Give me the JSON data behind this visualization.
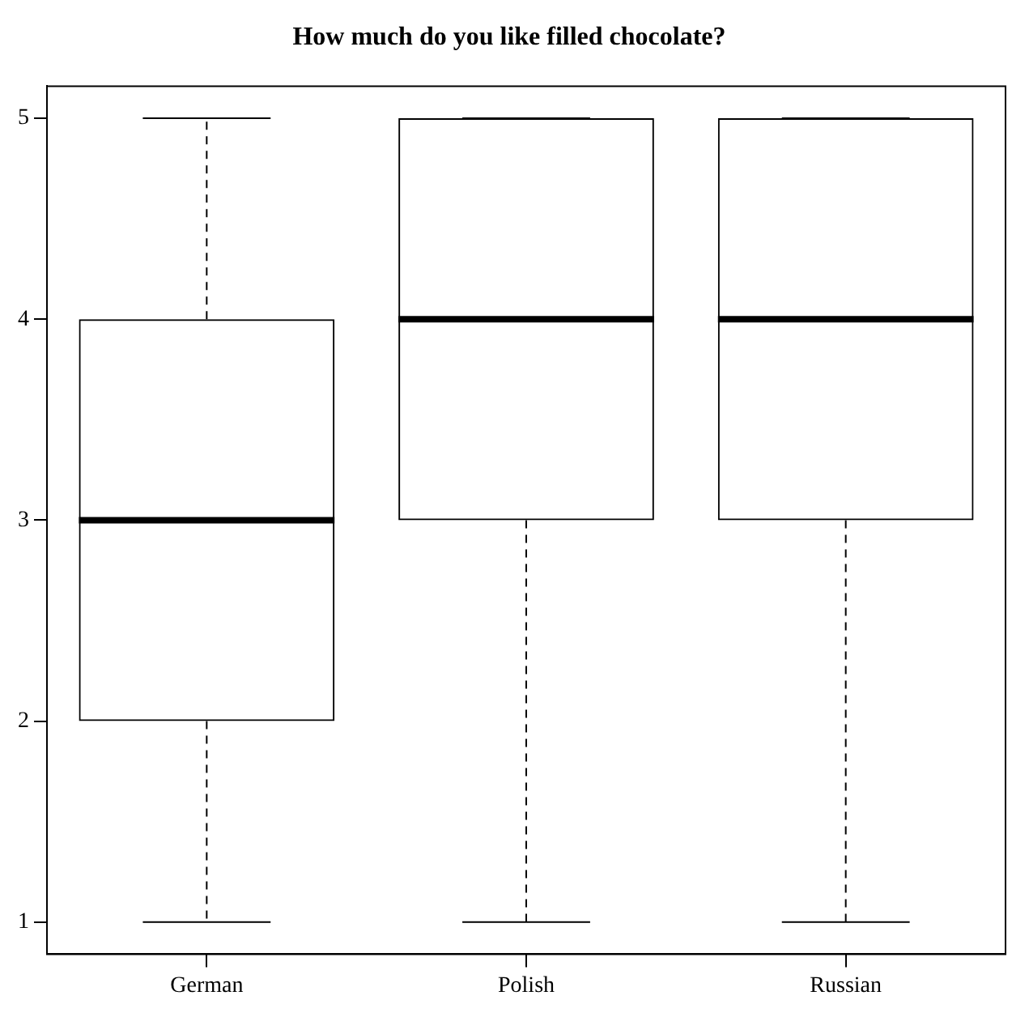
{
  "chart_data": {
    "type": "box",
    "title": "How much do you like filled chocolate?",
    "categories": [
      "German",
      "Polish",
      "Russian"
    ],
    "boxes": [
      {
        "low": 1,
        "q1": 2,
        "median": 3,
        "q3": 4,
        "high": 5
      },
      {
        "low": 1,
        "q1": 3,
        "median": 4,
        "q3": 5,
        "high": 5
      },
      {
        "low": 1,
        "q1": 3,
        "median": 4,
        "q3": 5,
        "high": 5
      }
    ],
    "color": "#000000",
    "ylim": [
      0.84,
      5.16
    ],
    "yticks": [
      1,
      2,
      3,
      4,
      5
    ],
    "grid": false,
    "legend": false
  }
}
